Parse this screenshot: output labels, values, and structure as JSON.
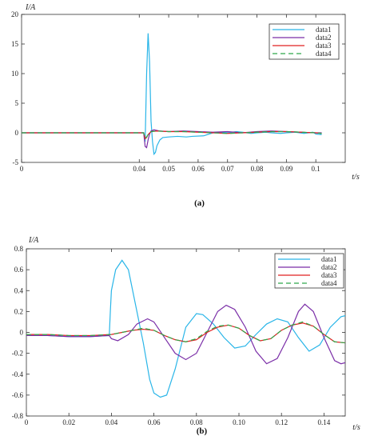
{
  "chart_data": [
    {
      "type": "line",
      "caption": "(a)",
      "ylabel": "I/A",
      "xlabel": "t/s",
      "xlim": [
        0,
        0.11
      ],
      "ylim": [
        -5,
        20
      ],
      "xticks": [
        0,
        0.04,
        0.05,
        0.06,
        0.07,
        0.08,
        0.09,
        0.1
      ],
      "xtick_labels": [
        "0",
        "0.04",
        "0.05",
        "0.06",
        "0.07",
        "0.08",
        "0.09",
        "0.1"
      ],
      "yticks": [
        -5,
        0,
        5,
        10,
        15,
        20
      ],
      "ytick_labels": [
        "-5",
        "0",
        "5",
        "10",
        "15",
        "20"
      ],
      "grid": false,
      "legend_position": "top-right",
      "series": [
        {
          "name": "data1",
          "color": "#29b5e8",
          "dash": "",
          "points": [
            [
              0,
              0
            ],
            [
              0.0415,
              0
            ],
            [
              0.042,
              -1.5
            ],
            [
              0.0425,
              10
            ],
            [
              0.043,
              16.8
            ],
            [
              0.0435,
              12
            ],
            [
              0.044,
              2
            ],
            [
              0.0445,
              -1.5
            ],
            [
              0.045,
              -3.6
            ],
            [
              0.0455,
              -3.3
            ],
            [
              0.046,
              -2.2
            ],
            [
              0.047,
              -1.2
            ],
            [
              0.048,
              -0.8
            ],
            [
              0.05,
              -0.7
            ],
            [
              0.053,
              -0.6
            ],
            [
              0.056,
              -0.7
            ],
            [
              0.058,
              -0.6
            ],
            [
              0.062,
              -0.5
            ],
            [
              0.065,
              0
            ],
            [
              0.068,
              0.1
            ],
            [
              0.07,
              0
            ],
            [
              0.073,
              0.2
            ],
            [
              0.075,
              0.1
            ],
            [
              0.078,
              -0.1
            ],
            [
              0.08,
              0
            ],
            [
              0.083,
              0.1
            ],
            [
              0.085,
              0
            ],
            [
              0.088,
              -0.1
            ],
            [
              0.09,
              0
            ],
            [
              0.093,
              0.1
            ],
            [
              0.096,
              -0.1
            ],
            [
              0.099,
              0.1
            ],
            [
              0.1,
              -0.2
            ],
            [
              0.102,
              -0.3
            ]
          ]
        },
        {
          "name": "data2",
          "color": "#7b2fa8",
          "dash": "",
          "points": [
            [
              0,
              0
            ],
            [
              0.0415,
              0
            ],
            [
              0.042,
              -2.3
            ],
            [
              0.0425,
              -2.5
            ],
            [
              0.043,
              -1.2
            ],
            [
              0.0435,
              -0.2
            ],
            [
              0.044,
              0.3
            ],
            [
              0.045,
              0.5
            ],
            [
              0.047,
              0.3
            ],
            [
              0.05,
              0.2
            ],
            [
              0.055,
              0.3
            ],
            [
              0.06,
              0.2
            ],
            [
              0.065,
              0.1
            ],
            [
              0.07,
              0.2
            ],
            [
              0.075,
              0
            ],
            [
              0.08,
              0.2
            ],
            [
              0.085,
              0.3
            ],
            [
              0.09,
              0.2
            ],
            [
              0.095,
              0.1
            ],
            [
              0.1,
              0
            ],
            [
              0.102,
              0
            ]
          ]
        },
        {
          "name": "data3",
          "color": "#e02020",
          "dash": "",
          "points": [
            [
              0,
              0
            ],
            [
              0.0415,
              0
            ],
            [
              0.042,
              -1.0
            ],
            [
              0.0425,
              -0.8
            ],
            [
              0.043,
              -0.3
            ],
            [
              0.044,
              0.2
            ],
            [
              0.046,
              0.3
            ],
            [
              0.05,
              0.2
            ],
            [
              0.055,
              0.2
            ],
            [
              0.06,
              0.1
            ],
            [
              0.065,
              0
            ],
            [
              0.07,
              -0.1
            ],
            [
              0.075,
              0
            ],
            [
              0.08,
              0.1
            ],
            [
              0.085,
              0.2
            ],
            [
              0.09,
              0.2
            ],
            [
              0.095,
              0.1
            ],
            [
              0.1,
              0
            ],
            [
              0.102,
              -0.1
            ]
          ]
        },
        {
          "name": "data4",
          "color": "#2ea84a",
          "dash": "6,4",
          "points": [
            [
              0,
              0
            ],
            [
              0.0415,
              0
            ],
            [
              0.042,
              -0.9
            ],
            [
              0.0425,
              -0.7
            ],
            [
              0.043,
              -0.3
            ],
            [
              0.044,
              0.2
            ],
            [
              0.046,
              0.3
            ],
            [
              0.05,
              0.2
            ],
            [
              0.055,
              0.2
            ],
            [
              0.06,
              0.1
            ],
            [
              0.065,
              0
            ],
            [
              0.07,
              -0.1
            ],
            [
              0.075,
              0
            ],
            [
              0.08,
              0.1
            ],
            [
              0.085,
              0.2
            ],
            [
              0.09,
              0.2
            ],
            [
              0.095,
              0.1
            ],
            [
              0.1,
              0
            ],
            [
              0.102,
              -0.1
            ]
          ]
        }
      ]
    },
    {
      "type": "line",
      "caption": "(b)",
      "ylabel": "I/A",
      "xlabel": "t/s",
      "xlim": [
        0,
        0.15
      ],
      "ylim": [
        -0.8,
        0.8
      ],
      "xticks": [
        0,
        0.02,
        0.04,
        0.06,
        0.08,
        0.1,
        0.12,
        0.14
      ],
      "xtick_labels": [
        "0",
        "0.02",
        "0.04",
        "0.06",
        "0.08",
        "0.10",
        "0.12",
        "0.14"
      ],
      "yticks": [
        -0.8,
        -0.6,
        -0.4,
        -0.2,
        0,
        0.2,
        0.4,
        0.6,
        0.8
      ],
      "ytick_labels": [
        "-0.8",
        "-0.6",
        "-0.4",
        "-0.2",
        "0",
        "0.2",
        "0.4",
        "0.6",
        "0.8"
      ],
      "grid": false,
      "legend_position": "top-right",
      "series": [
        {
          "name": "data1",
          "color": "#29b5e8",
          "dash": "",
          "points": [
            [
              0,
              -0.03
            ],
            [
              0.01,
              -0.03
            ],
            [
              0.02,
              -0.04
            ],
            [
              0.03,
              -0.04
            ],
            [
              0.039,
              -0.03
            ],
            [
              0.0395,
              0.2
            ],
            [
              0.04,
              0.4
            ],
            [
              0.042,
              0.6
            ],
            [
              0.045,
              0.69
            ],
            [
              0.048,
              0.6
            ],
            [
              0.05,
              0.4
            ],
            [
              0.055,
              -0.1
            ],
            [
              0.058,
              -0.45
            ],
            [
              0.06,
              -0.58
            ],
            [
              0.063,
              -0.62
            ],
            [
              0.066,
              -0.6
            ],
            [
              0.07,
              -0.35
            ],
            [
              0.075,
              0.05
            ],
            [
              0.08,
              0.18
            ],
            [
              0.083,
              0.17
            ],
            [
              0.088,
              0.08
            ],
            [
              0.093,
              -0.05
            ],
            [
              0.098,
              -0.15
            ],
            [
              0.103,
              -0.13
            ],
            [
              0.108,
              -0.02
            ],
            [
              0.113,
              0.08
            ],
            [
              0.118,
              0.13
            ],
            [
              0.123,
              0.1
            ],
            [
              0.128,
              -0.05
            ],
            [
              0.133,
              -0.18
            ],
            [
              0.138,
              -0.12
            ],
            [
              0.143,
              0.05
            ],
            [
              0.148,
              0.15
            ],
            [
              0.15,
              0.16
            ]
          ]
        },
        {
          "name": "data2",
          "color": "#7b2fa8",
          "dash": "",
          "points": [
            [
              0,
              -0.03
            ],
            [
              0.01,
              -0.03
            ],
            [
              0.02,
              -0.04
            ],
            [
              0.03,
              -0.04
            ],
            [
              0.039,
              -0.03
            ],
            [
              0.04,
              -0.06
            ],
            [
              0.043,
              -0.08
            ],
            [
              0.048,
              -0.02
            ],
            [
              0.052,
              0.08
            ],
            [
              0.057,
              0.13
            ],
            [
              0.06,
              0.1
            ],
            [
              0.065,
              -0.05
            ],
            [
              0.07,
              -0.2
            ],
            [
              0.075,
              -0.26
            ],
            [
              0.08,
              -0.2
            ],
            [
              0.085,
              0
            ],
            [
              0.09,
              0.2
            ],
            [
              0.094,
              0.26
            ],
            [
              0.098,
              0.22
            ],
            [
              0.103,
              0.05
            ],
            [
              0.108,
              -0.18
            ],
            [
              0.113,
              -0.3
            ],
            [
              0.118,
              -0.25
            ],
            [
              0.123,
              -0.05
            ],
            [
              0.128,
              0.2
            ],
            [
              0.131,
              0.27
            ],
            [
              0.135,
              0.2
            ],
            [
              0.14,
              -0.05
            ],
            [
              0.145,
              -0.27
            ],
            [
              0.148,
              -0.3
            ],
            [
              0.15,
              -0.29
            ]
          ]
        },
        {
          "name": "data3",
          "color": "#e02020",
          "dash": "",
          "points": [
            [
              0,
              -0.02
            ],
            [
              0.01,
              -0.02
            ],
            [
              0.02,
              -0.03
            ],
            [
              0.03,
              -0.03
            ],
            [
              0.04,
              -0.02
            ],
            [
              0.045,
              0
            ],
            [
              0.05,
              0.02
            ],
            [
              0.055,
              0.03
            ],
            [
              0.06,
              0.02
            ],
            [
              0.065,
              -0.03
            ],
            [
              0.07,
              -0.07
            ],
            [
              0.075,
              -0.09
            ],
            [
              0.08,
              -0.07
            ],
            [
              0.085,
              0
            ],
            [
              0.09,
              0.05
            ],
            [
              0.095,
              0.07
            ],
            [
              0.1,
              0.04
            ],
            [
              0.105,
              -0.03
            ],
            [
              0.11,
              -0.08
            ],
            [
              0.115,
              -0.06
            ],
            [
              0.12,
              0.02
            ],
            [
              0.125,
              0.07
            ],
            [
              0.13,
              0.09
            ],
            [
              0.135,
              0.06
            ],
            [
              0.14,
              -0.02
            ],
            [
              0.145,
              -0.09
            ],
            [
              0.15,
              -0.1
            ]
          ]
        },
        {
          "name": "data4",
          "color": "#2ea84a",
          "dash": "6,4",
          "points": [
            [
              0,
              -0.02
            ],
            [
              0.01,
              -0.02
            ],
            [
              0.02,
              -0.03
            ],
            [
              0.03,
              -0.03
            ],
            [
              0.04,
              -0.02
            ],
            [
              0.045,
              0
            ],
            [
              0.05,
              0.02
            ],
            [
              0.055,
              0.04
            ],
            [
              0.06,
              0.02
            ],
            [
              0.065,
              -0.03
            ],
            [
              0.07,
              -0.07
            ],
            [
              0.075,
              -0.09
            ],
            [
              0.08,
              -0.06
            ],
            [
              0.085,
              0.01
            ],
            [
              0.09,
              0.06
            ],
            [
              0.095,
              0.07
            ],
            [
              0.1,
              0.04
            ],
            [
              0.105,
              -0.03
            ],
            [
              0.11,
              -0.08
            ],
            [
              0.115,
              -0.06
            ],
            [
              0.12,
              0.02
            ],
            [
              0.125,
              0.07
            ],
            [
              0.13,
              0.1
            ],
            [
              0.135,
              0.06
            ],
            [
              0.14,
              -0.02
            ],
            [
              0.145,
              -0.09
            ],
            [
              0.15,
              -0.1
            ]
          ]
        }
      ]
    }
  ]
}
